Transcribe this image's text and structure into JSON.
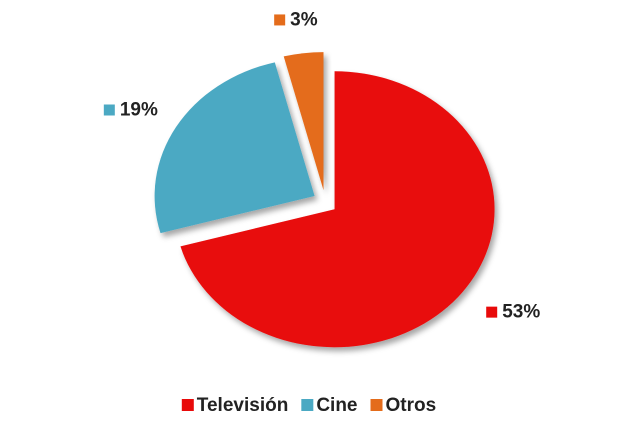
{
  "chart_data": {
    "type": "pie",
    "categories": [
      "Televisión",
      "Cine",
      "Otros"
    ],
    "values": [
      53,
      19,
      3
    ],
    "value_labels": [
      "53%",
      "19%",
      "3%"
    ],
    "colors": [
      "#e80a0a",
      "#4ba9c3",
      "#e46c1b"
    ],
    "legend": "bottom"
  }
}
